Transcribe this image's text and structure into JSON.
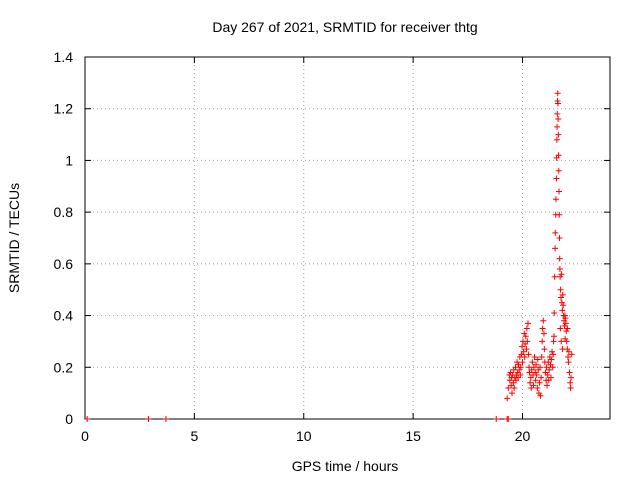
{
  "chart_data": {
    "type": "scatter",
    "title": "Day 267 of 2021, SRMTID for receiver thtg",
    "xlabel": "GPS time / hours",
    "ylabel": "SRMTID / TECUs",
    "xlim": [
      0,
      24
    ],
    "ylim": [
      0,
      1.4
    ],
    "xticks": [
      0,
      5,
      10,
      15,
      20
    ],
    "xtick_labels": [
      "0",
      "5",
      "10",
      "15",
      "20"
    ],
    "yticks": [
      0,
      0.2,
      0.4,
      0.6,
      0.8,
      1.0,
      1.2,
      1.4
    ],
    "ytick_labels": [
      "0",
      "0.2",
      "0.4",
      "0.6",
      "0.8",
      "1",
      "1.2",
      "1.4"
    ],
    "grid": true,
    "marker": "+",
    "color": "#ff0000",
    "series": [
      {
        "name": "SRMTID",
        "points": [
          [
            0.1,
            0.0
          ],
          [
            2.9,
            0.0
          ],
          [
            3.7,
            0.0
          ],
          [
            18.8,
            0.0
          ],
          [
            19.3,
            0.0
          ],
          [
            19.35,
            0.0
          ],
          [
            19.3,
            0.08
          ],
          [
            19.35,
            0.12
          ],
          [
            19.4,
            0.17
          ],
          [
            19.42,
            0.15
          ],
          [
            19.45,
            0.18
          ],
          [
            19.48,
            0.13
          ],
          [
            19.5,
            0.16
          ],
          [
            19.52,
            0.1
          ],
          [
            19.55,
            0.17
          ],
          [
            19.58,
            0.14
          ],
          [
            19.6,
            0.19
          ],
          [
            19.62,
            0.12
          ],
          [
            19.65,
            0.16
          ],
          [
            19.68,
            0.2
          ],
          [
            19.7,
            0.15
          ],
          [
            19.72,
            0.17
          ],
          [
            19.75,
            0.22
          ],
          [
            19.78,
            0.18
          ],
          [
            19.8,
            0.16
          ],
          [
            19.82,
            0.21
          ],
          [
            19.85,
            0.19
          ],
          [
            19.88,
            0.24
          ],
          [
            19.9,
            0.17
          ],
          [
            19.92,
            0.2
          ],
          [
            19.95,
            0.25
          ],
          [
            19.98,
            0.28
          ],
          [
            20.0,
            0.22
          ],
          [
            20.02,
            0.3
          ],
          [
            20.05,
            0.26
          ],
          [
            20.08,
            0.33
          ],
          [
            20.1,
            0.24
          ],
          [
            20.12,
            0.29
          ],
          [
            20.15,
            0.32
          ],
          [
            20.18,
            0.27
          ],
          [
            20.2,
            0.35
          ],
          [
            20.22,
            0.3
          ],
          [
            20.25,
            0.37
          ],
          [
            20.28,
            0.25
          ],
          [
            20.3,
            0.2
          ],
          [
            20.32,
            0.18
          ],
          [
            20.35,
            0.14
          ],
          [
            20.38,
            0.16
          ],
          [
            20.4,
            0.12
          ],
          [
            20.42,
            0.19
          ],
          [
            20.45,
            0.22
          ],
          [
            20.48,
            0.17
          ],
          [
            20.5,
            0.13
          ],
          [
            20.52,
            0.2
          ],
          [
            20.55,
            0.24
          ],
          [
            20.58,
            0.18
          ],
          [
            20.6,
            0.15
          ],
          [
            20.62,
            0.21
          ],
          [
            20.65,
            0.17
          ],
          [
            20.68,
            0.12
          ],
          [
            20.7,
            0.23
          ],
          [
            20.72,
            0.19
          ],
          [
            20.75,
            0.1
          ],
          [
            20.78,
            0.14
          ],
          [
            20.8,
            0.2
          ],
          [
            20.82,
            0.09
          ],
          [
            20.85,
            0.16
          ],
          [
            20.88,
            0.24
          ],
          [
            20.9,
            0.3
          ],
          [
            20.92,
            0.35
          ],
          [
            20.95,
            0.38
          ],
          [
            20.98,
            0.33
          ],
          [
            21.0,
            0.27
          ],
          [
            21.02,
            0.22
          ],
          [
            21.05,
            0.18
          ],
          [
            21.08,
            0.15
          ],
          [
            21.1,
            0.2
          ],
          [
            21.12,
            0.13
          ],
          [
            21.15,
            0.17
          ],
          [
            21.18,
            0.22
          ],
          [
            21.2,
            0.15
          ],
          [
            21.22,
            0.19
          ],
          [
            21.25,
            0.24
          ],
          [
            21.28,
            0.21
          ],
          [
            21.3,
            0.16
          ],
          [
            21.32,
            0.23
          ],
          [
            21.35,
            0.26
          ],
          [
            21.38,
            0.2
          ],
          [
            21.4,
            0.25
          ],
          [
            21.42,
            0.3
          ],
          [
            21.45,
            0.41
          ],
          [
            21.47,
            0.55
          ],
          [
            21.49,
            0.66
          ],
          [
            21.5,
            0.72
          ],
          [
            21.52,
            0.79
          ],
          [
            21.53,
            0.85
          ],
          [
            21.55,
            0.93
          ],
          [
            21.56,
            1.01
          ],
          [
            21.57,
            1.08
          ],
          [
            21.58,
            1.13
          ],
          [
            21.59,
            1.18
          ],
          [
            21.6,
            1.23
          ],
          [
            21.61,
            1.26
          ],
          [
            21.62,
            1.22
          ],
          [
            21.63,
            1.16
          ],
          [
            21.64,
            1.1
          ],
          [
            21.65,
            1.02
          ],
          [
            21.66,
            0.96
          ],
          [
            21.67,
            0.88
          ],
          [
            21.68,
            0.79
          ],
          [
            21.69,
            0.7
          ],
          [
            21.7,
            0.62
          ],
          [
            21.71,
            0.58
          ],
          [
            21.72,
            0.55
          ],
          [
            21.74,
            0.5
          ],
          [
            21.76,
            0.47
          ],
          [
            21.78,
            0.56
          ],
          [
            21.8,
            0.45
          ],
          [
            21.82,
            0.42
          ],
          [
            21.84,
            0.48
          ],
          [
            21.86,
            0.44
          ],
          [
            21.88,
            0.4
          ],
          [
            21.9,
            0.38
          ],
          [
            21.92,
            0.36
          ],
          [
            21.94,
            0.4
          ],
          [
            21.96,
            0.39
          ],
          [
            21.98,
            0.37
          ],
          [
            22.0,
            0.34
          ],
          [
            22.02,
            0.3
          ],
          [
            22.05,
            0.27
          ],
          [
            22.08,
            0.24
          ],
          [
            22.1,
            0.22
          ],
          [
            22.12,
            0.26
          ],
          [
            22.15,
            0.18
          ],
          [
            22.18,
            0.14
          ],
          [
            22.2,
            0.12
          ],
          [
            22.22,
            0.16
          ],
          [
            22.25,
            0.25
          ],
          [
            21.73,
            0.35
          ],
          [
            21.77,
            0.3
          ],
          [
            21.83,
            0.27
          ],
          [
            21.95,
            0.31
          ],
          [
            22.06,
            0.35
          ],
          [
            21.44,
            0.32
          ]
        ]
      }
    ]
  }
}
